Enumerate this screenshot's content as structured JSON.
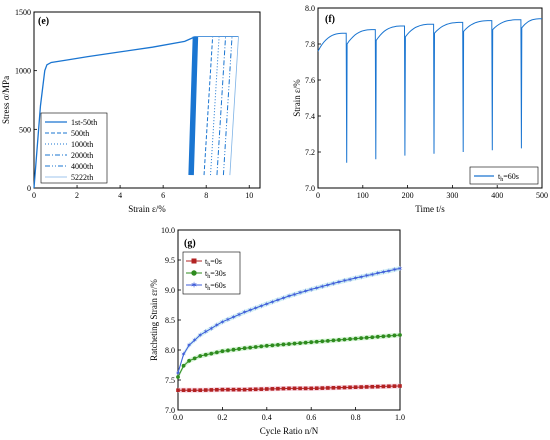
{
  "chart_data": [
    {
      "panel": "(e)",
      "type": "line",
      "xlabel": "Strain ε/%",
      "ylabel": "Stress σ/MPa",
      "xlim": [
        0,
        10.5
      ],
      "ylim": [
        0,
        1500
      ],
      "xticks": [
        0,
        2,
        4,
        6,
        8,
        10
      ],
      "yticks": [
        0,
        500,
        1000,
        1500
      ],
      "legend_position": "bottom-left",
      "envelope": {
        "x": [
          0,
          0.3,
          0.5,
          0.6,
          0.8,
          1.5,
          2.5,
          4,
          5.5,
          7,
          7.5
        ],
        "y": [
          0,
          700,
          1000,
          1050,
          1070,
          1090,
          1120,
          1160,
          1200,
          1250,
          1290
        ]
      },
      "series": [
        {
          "name": "1st-50th",
          "style": "solid-thick",
          "x": [
            7.3,
            7.5
          ],
          "y": [
            110,
            1290
          ]
        },
        {
          "name": "500th",
          "style": "dashed",
          "x": [
            7.9,
            8.3
          ],
          "y": [
            110,
            1290
          ]
        },
        {
          "name": "1000th",
          "style": "dotted",
          "x": [
            8.2,
            8.6
          ],
          "y": [
            110,
            1290
          ]
        },
        {
          "name": "2000th",
          "style": "dash-dot",
          "x": [
            8.5,
            8.9
          ],
          "y": [
            110,
            1290
          ]
        },
        {
          "name": "4000th",
          "style": "dash-dot-dot",
          "x": [
            8.8,
            9.2
          ],
          "y": [
            110,
            1290
          ]
        },
        {
          "name": "5222th",
          "style": "thin",
          "x": [
            9.1,
            9.5
          ],
          "y": [
            110,
            1290
          ]
        }
      ]
    },
    {
      "panel": "(f)",
      "type": "line",
      "xlabel": "Time t/s",
      "ylabel": "Strain ε/%",
      "xlim": [
        0,
        500
      ],
      "ylim": [
        7.0,
        8.0
      ],
      "xticks": [
        0,
        100,
        200,
        300,
        400,
        500
      ],
      "yticks": [
        7.0,
        7.2,
        7.4,
        7.6,
        7.8,
        8.0
      ],
      "legend_position": "bottom-right",
      "legend": "t_h=60s",
      "dwell_start_x": [
        0,
        65,
        130,
        195,
        260,
        325,
        390,
        455
      ],
      "dwell_start_y": [
        7.76,
        7.8,
        7.82,
        7.84,
        7.86,
        7.87,
        7.88,
        7.89
      ],
      "dwell_end_y": [
        7.86,
        7.88,
        7.9,
        7.91,
        7.92,
        7.93,
        7.935,
        7.94
      ],
      "drop_y": [
        7.14,
        7.16,
        7.18,
        7.19,
        7.2,
        7.21,
        7.22
      ]
    },
    {
      "panel": "(g)",
      "type": "line",
      "xlabel": "Cycle Ratio n/N",
      "ylabel": "Ratcheting Strain εr/%",
      "xlim": [
        0,
        1.0
      ],
      "ylim": [
        7.0,
        10.0
      ],
      "xticks": [
        0.0,
        0.2,
        0.4,
        0.6,
        0.8,
        1.0
      ],
      "yticks": [
        7.0,
        7.5,
        8.0,
        8.5,
        9.0,
        9.5,
        10.0
      ],
      "legend_position": "top-left",
      "series": [
        {
          "name": "t_h=0s",
          "color": "#b22222",
          "marker": "square",
          "x": [
            0,
            0.1,
            0.2,
            0.3,
            0.4,
            0.5,
            0.6,
            0.7,
            0.8,
            0.9,
            1.0
          ],
          "y": [
            7.33,
            7.33,
            7.34,
            7.34,
            7.35,
            7.36,
            7.36,
            7.37,
            7.38,
            7.39,
            7.4
          ]
        },
        {
          "name": "t_h=30s",
          "color": "#2e8b1e",
          "marker": "circle",
          "x": [
            0,
            0.02,
            0.05,
            0.1,
            0.2,
            0.3,
            0.4,
            0.5,
            0.6,
            0.7,
            0.8,
            0.9,
            1.0
          ],
          "y": [
            7.55,
            7.72,
            7.82,
            7.9,
            7.98,
            8.03,
            8.07,
            8.1,
            8.13,
            8.16,
            8.19,
            8.22,
            8.25
          ]
        },
        {
          "name": "t_h=60s",
          "color": "#3d5bd9",
          "marker": "star",
          "x": [
            0,
            0.02,
            0.05,
            0.1,
            0.2,
            0.3,
            0.4,
            0.5,
            0.6,
            0.7,
            0.8,
            0.9,
            1.0
          ],
          "y": [
            7.62,
            7.9,
            8.08,
            8.25,
            8.47,
            8.63,
            8.77,
            8.9,
            9.01,
            9.11,
            9.2,
            9.28,
            9.36
          ]
        }
      ]
    }
  ],
  "text": {
    "e_panel": "(e)",
    "e_xlabel": "Strain ε/%",
    "e_ylabel": "Stress σ/MPa",
    "e_leg1": "1st-50th",
    "e_leg2": "500th",
    "e_leg3": "1000th",
    "e_leg4": "2000th",
    "e_leg5": "4000th",
    "e_leg6": "5222th",
    "f_panel": "(f)",
    "f_xlabel": "Time t/s",
    "f_ylabel": "Strain ε/%",
    "f_legend": "t",
    "f_legend_sub": "h",
    "f_legend_tail": "=60s",
    "g_panel": "(g)",
    "g_xlabel": "Cycle Ratio n/N",
    "g_ylabel": "Ratcheting Strain εr/%",
    "g_leg1": "t",
    "g_leg1_sub": "h",
    "g_leg1_tail": "=0s",
    "g_leg2": "t",
    "g_leg2_sub": "h",
    "g_leg2_tail": "=30s",
    "g_leg3": "t",
    "g_leg3_sub": "h",
    "g_leg3_tail": "=60s"
  },
  "colors": {
    "e_line": "#1a75d1",
    "f_line": "#1a75d1",
    "g_band_0": "#f4c6d6",
    "g_band_30": "#c9f0c9",
    "g_band_60": "#c9eef3"
  }
}
